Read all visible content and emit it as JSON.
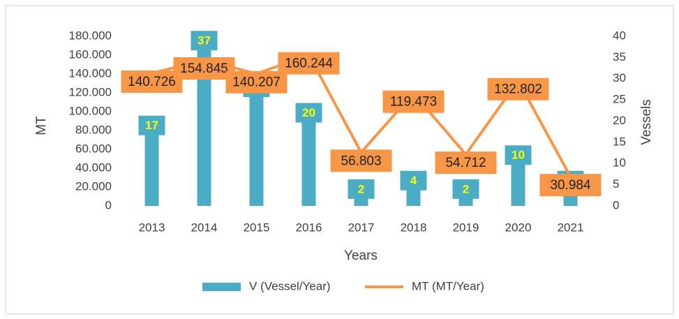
{
  "chart_data": {
    "type": "bar+line",
    "categories": [
      "2013",
      "2014",
      "2015",
      "2016",
      "2017",
      "2018",
      "2019",
      "2020",
      "2021"
    ],
    "series": [
      {
        "name": "V (Vessel/Year)",
        "type": "bar",
        "axis": "y2",
        "color": "#4bacc6",
        "values": [
          17,
          37,
          26,
          20,
          2,
          4,
          2,
          10,
          4
        ]
      },
      {
        "name": "MT (MT/Year)",
        "type": "line",
        "axis": "y",
        "color": "#f79646",
        "values": [
          140726,
          154845,
          140207,
          160244,
          56803,
          119473,
          54712,
          132802,
          30984
        ],
        "value_labels": [
          "140.726",
          "154.845",
          "140.207",
          "160.244",
          "56.803",
          "119.473",
          "54.712",
          "132.802",
          "30.984"
        ]
      }
    ],
    "x_label": "Years",
    "y_label": "MT",
    "y2_label": "Vessels",
    "ylim": [
      0,
      180000
    ],
    "yticks": [
      0,
      {
        "value": 20000,
        "label": "20.000"
      },
      {
        "value": 40000,
        "label": "40.000"
      },
      {
        "value": 60000,
        "label": "60.000"
      },
      {
        "value": 80000,
        "label": "80.000"
      },
      {
        "value": 100000,
        "label": "100.000"
      },
      {
        "value": 120000,
        "label": "120.000"
      },
      {
        "value": 140000,
        "label": "140.000"
      },
      {
        "value": 160000,
        "label": "160.000"
      },
      {
        "value": 180000,
        "label": "180.000"
      }
    ],
    "y2lim": [
      0,
      40
    ],
    "y2ticks": [
      0,
      5,
      10,
      15,
      20,
      25,
      30,
      35,
      40
    ],
    "legend": "bottom"
  }
}
